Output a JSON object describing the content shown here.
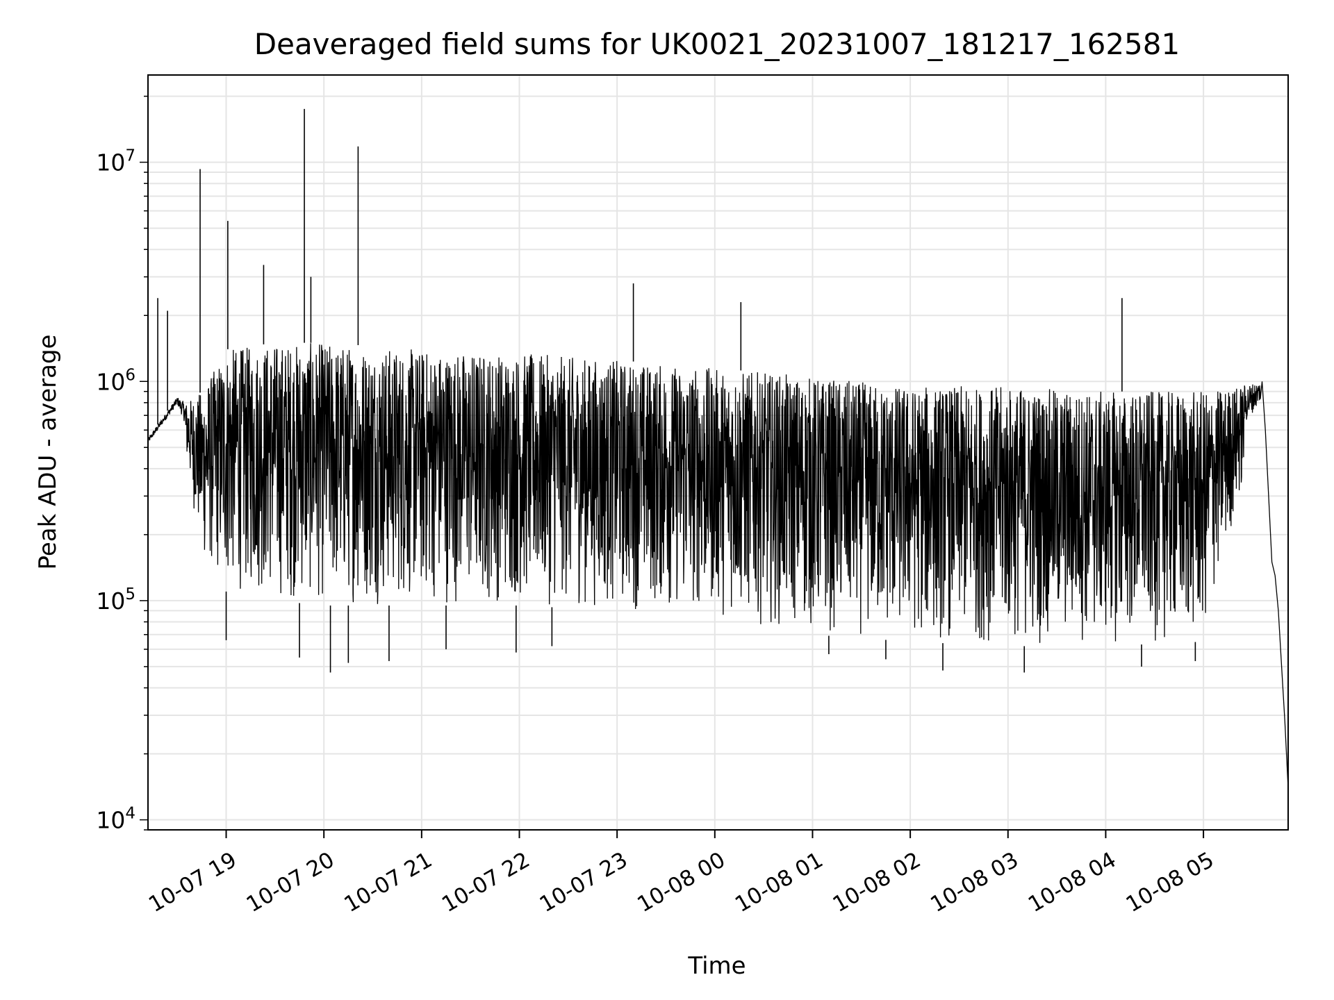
{
  "chart_data": {
    "type": "line",
    "title": "Deaveraged field sums for UK0021_20231007_181217_162581",
    "xlabel": "Time",
    "ylabel": "Peak ADU - average",
    "y_scale": "log",
    "ylim": [
      9000,
      25000000
    ],
    "xlim": [
      "2023-10-07 18:12",
      "2023-10-08 05:52"
    ],
    "grid": true,
    "legend": "none",
    "line_color": "#000000",
    "grid_color": "#e5e5e5",
    "x_ticks": [
      {
        "t": "2023-10-07 19:00",
        "label": "10-07 19"
      },
      {
        "t": "2023-10-07 20:00",
        "label": "10-07 20"
      },
      {
        "t": "2023-10-07 21:00",
        "label": "10-07 21"
      },
      {
        "t": "2023-10-07 22:00",
        "label": "10-07 22"
      },
      {
        "t": "2023-10-07 23:00",
        "label": "10-07 23"
      },
      {
        "t": "2023-10-08 00:00",
        "label": "10-08 00"
      },
      {
        "t": "2023-10-08 01:00",
        "label": "10-08 01"
      },
      {
        "t": "2023-10-08 02:00",
        "label": "10-08 02"
      },
      {
        "t": "2023-10-08 03:00",
        "label": "10-08 03"
      },
      {
        "t": "2023-10-08 04:00",
        "label": "10-08 04"
      },
      {
        "t": "2023-10-08 05:00",
        "label": "10-08 05"
      }
    ],
    "y_ticks": [
      {
        "value": 10000,
        "base": "10",
        "exp": "4"
      },
      {
        "value": 100000,
        "base": "10",
        "exp": "5"
      },
      {
        "value": 1000000,
        "base": "10",
        "exp": "6"
      },
      {
        "value": 10000000,
        "base": "10",
        "exp": "7"
      }
    ],
    "envelope": {
      "t": [
        "2023-10-07 18:12",
        "2023-10-07 18:30",
        "2023-10-07 18:35",
        "2023-10-07 18:45",
        "2023-10-07 19:00",
        "2023-10-07 19:30",
        "2023-10-07 20:00",
        "2023-10-07 21:00",
        "2023-10-07 22:00",
        "2023-10-07 23:00",
        "2023-10-08 00:00",
        "2023-10-08 01:00",
        "2023-10-08 02:00",
        "2023-10-08 03:00",
        "2023-10-08 04:00",
        "2023-10-08 05:00",
        "2023-10-08 05:20",
        "2023-10-08 05:35"
      ],
      "upper": [
        550000,
        850000,
        800000,
        900000,
        1400000,
        1500000,
        1500000,
        1400000,
        1350000,
        1250000,
        1150000,
        1050000,
        950000,
        950000,
        900000,
        900000,
        950000,
        1000000
      ],
      "lower": [
        480000,
        700000,
        450000,
        150000,
        110000,
        100000,
        95000,
        95000,
        95000,
        90000,
        85000,
        70000,
        65000,
        62000,
        62000,
        65000,
        250000,
        600000
      ]
    },
    "spikes": [
      {
        "t": "2023-10-07 18:18",
        "value": 2400000
      },
      {
        "t": "2023-10-07 18:24",
        "value": 2100000
      },
      {
        "t": "2023-10-07 18:44",
        "value": 9300000
      },
      {
        "t": "2023-10-07 19:01",
        "value": 5400000
      },
      {
        "t": "2023-10-07 19:23",
        "value": 3400000
      },
      {
        "t": "2023-10-07 19:48",
        "value": 17500000
      },
      {
        "t": "2023-10-07 19:52",
        "value": 3000000
      },
      {
        "t": "2023-10-07 20:21",
        "value": 11800000
      },
      {
        "t": "2023-10-07 23:10",
        "value": 2800000
      },
      {
        "t": "2023-10-08 00:16",
        "value": 2300000
      },
      {
        "t": "2023-10-08 04:10",
        "value": 2400000
      }
    ],
    "dips": [
      {
        "t": "2023-10-07 19:00",
        "value": 66000
      },
      {
        "t": "2023-10-07 19:45",
        "value": 55000
      },
      {
        "t": "2023-10-07 20:04",
        "value": 47000
      },
      {
        "t": "2023-10-07 20:15",
        "value": 52000
      },
      {
        "t": "2023-10-07 20:40",
        "value": 53000
      },
      {
        "t": "2023-10-07 21:15",
        "value": 60000
      },
      {
        "t": "2023-10-07 21:58",
        "value": 58000
      },
      {
        "t": "2023-10-07 22:20",
        "value": 62000
      },
      {
        "t": "2023-10-08 01:10",
        "value": 57000
      },
      {
        "t": "2023-10-08 01:45",
        "value": 54000
      },
      {
        "t": "2023-10-08 02:20",
        "value": 48000
      },
      {
        "t": "2023-10-08 03:10",
        "value": 47000
      },
      {
        "t": "2023-10-08 04:22",
        "value": 50000
      },
      {
        "t": "2023-10-08 04:55",
        "value": 53000
      }
    ],
    "tail": {
      "t": [
        "2023-10-08 05:36",
        "2023-10-08 05:38",
        "2023-10-08 05:40",
        "2023-10-08 05:42",
        "2023-10-08 05:44",
        "2023-10-08 05:46",
        "2023-10-08 05:48",
        "2023-10-08 05:50",
        "2023-10-08 05:52"
      ],
      "values": [
        1000000,
        600000,
        300000,
        150000,
        130000,
        90000,
        50000,
        28000,
        14000
      ]
    }
  }
}
